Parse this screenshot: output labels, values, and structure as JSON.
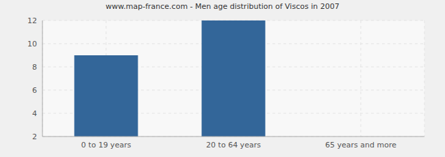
{
  "chart_data": {
    "type": "bar",
    "title": "www.map-france.com - Men age distribution of Viscos in 2007",
    "categories": [
      "0 to 19 years",
      "20 to 64 years",
      "65 years and more"
    ],
    "values": [
      9,
      12,
      2
    ],
    "color": "#336699",
    "ylim": [
      2,
      12
    ],
    "yticks": [
      2,
      4,
      6,
      8,
      10,
      12
    ],
    "grid": true
  }
}
